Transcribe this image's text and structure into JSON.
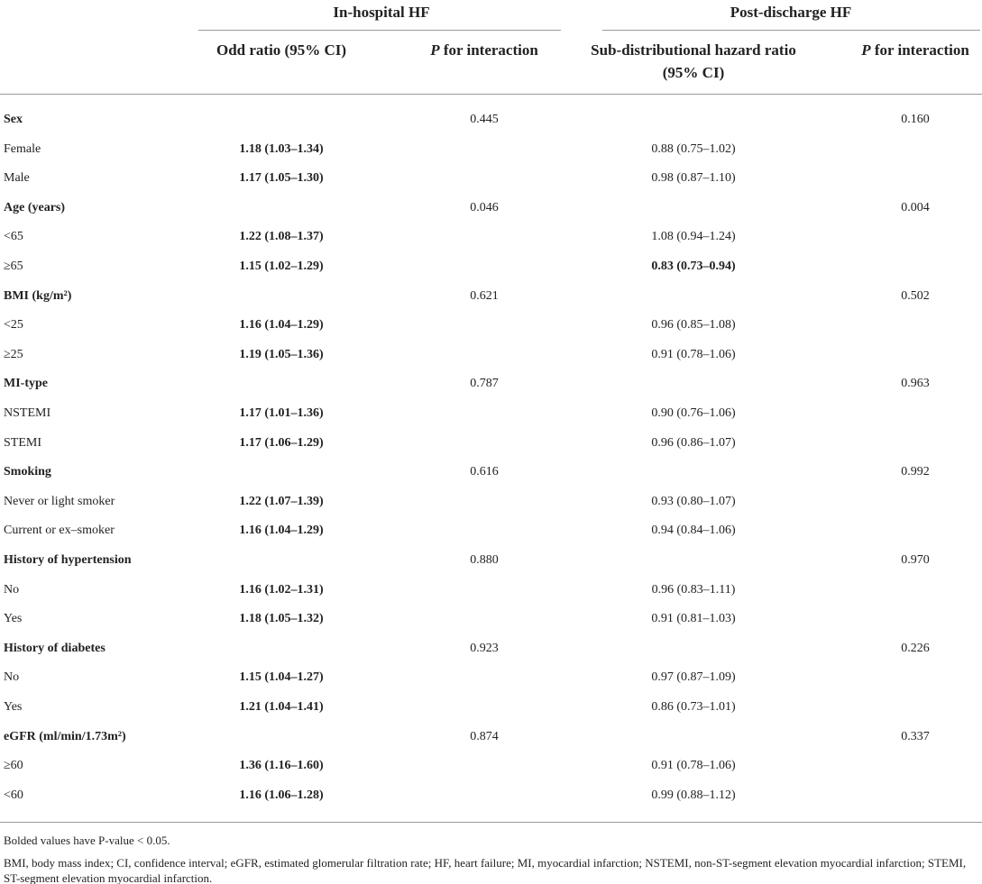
{
  "table": {
    "groups": [
      "In-hospital HF",
      "Post-discharge HF"
    ],
    "columns": [
      "Odd ratio (95% CI)",
      "P for interaction",
      "Sub-distributional hazard ratio (95% CI)",
      "P for interaction"
    ],
    "rows": [
      {
        "label": "Sex",
        "group": true,
        "p_in": "0.445",
        "p_post": "0.160"
      },
      {
        "label": "Female",
        "or": "1.18 (1.03–1.34)",
        "shr": "0.88 (0.75–1.02)"
      },
      {
        "label": "Male",
        "or": "1.17 (1.05–1.30)",
        "shr": "0.98 (0.87–1.10)"
      },
      {
        "label": "Age (years)",
        "group": true,
        "p_in": "0.046",
        "p_post": "0.004"
      },
      {
        "label": "<65",
        "or": "1.22 (1.08–1.37)",
        "shr": "1.08 (0.94–1.24)"
      },
      {
        "label": "≥65",
        "or": "1.15 (1.02–1.29)",
        "shr": "0.83 (0.73–0.94)",
        "shr_bold": true
      },
      {
        "label": "BMI (kg/m²)",
        "group": true,
        "p_in": "0.621",
        "p_post": "0.502"
      },
      {
        "label": "<25",
        "or": "1.16 (1.04–1.29)",
        "shr": "0.96 (0.85–1.08)"
      },
      {
        "label": "≥25",
        "or": "1.19 (1.05–1.36)",
        "shr": "0.91 (0.78–1.06)"
      },
      {
        "label": "MI-type",
        "group": true,
        "p_in": "0.787",
        "p_post": "0.963"
      },
      {
        "label": "NSTEMI",
        "or": "1.17 (1.01–1.36)",
        "shr": "0.90 (0.76–1.06)"
      },
      {
        "label": "STEMI",
        "or": "1.17 (1.06–1.29)",
        "shr": "0.96 (0.86–1.07)"
      },
      {
        "label": "Smoking",
        "group": true,
        "p_in": "0.616",
        "p_post": "0.992"
      },
      {
        "label": "Never or light smoker",
        "or": "1.22 (1.07–1.39)",
        "shr": "0.93 (0.80–1.07)"
      },
      {
        "label": "Current or ex–smoker",
        "or": "1.16 (1.04–1.29)",
        "shr": "0.94 (0.84–1.06)"
      },
      {
        "label": "History of hypertension",
        "group": true,
        "p_in": "0.880",
        "p_post": "0.970"
      },
      {
        "label": "No",
        "or": "1.16 (1.02–1.31)",
        "shr": "0.96 (0.83–1.11)"
      },
      {
        "label": "Yes",
        "or": "1.18 (1.05–1.32)",
        "shr": "0.91 (0.81–1.03)"
      },
      {
        "label": "History of diabetes",
        "group": true,
        "p_in": "0.923",
        "p_post": "0.226"
      },
      {
        "label": "No",
        "or": "1.15 (1.04–1.27)",
        "shr": "0.97 (0.87–1.09)"
      },
      {
        "label": "Yes",
        "or": "1.21 (1.04–1.41)",
        "shr": "0.86 (0.73–1.01)"
      },
      {
        "label": "eGFR (ml/min/1.73m²)",
        "group": true,
        "p_in": "0.874",
        "p_post": "0.337"
      },
      {
        "label": "≥60",
        "or": "1.36 (1.16–1.60)",
        "shr": "0.91 (0.78–1.06)"
      },
      {
        "label": "<60",
        "or": "1.16 (1.06–1.28)",
        "shr": "0.99 (0.88–1.12)"
      }
    ]
  },
  "footnotes": [
    "Bolded values have P-value < 0.05.",
    "BMI, body mass index; CI, confidence interval; eGFR, estimated glomerular filtration rate; HF, heart failure; MI, myocardial infarction; NSTEMI, non-ST-segment elevation myocardial infarction; STEMI, ST-segment elevation myocardial infarction."
  ]
}
